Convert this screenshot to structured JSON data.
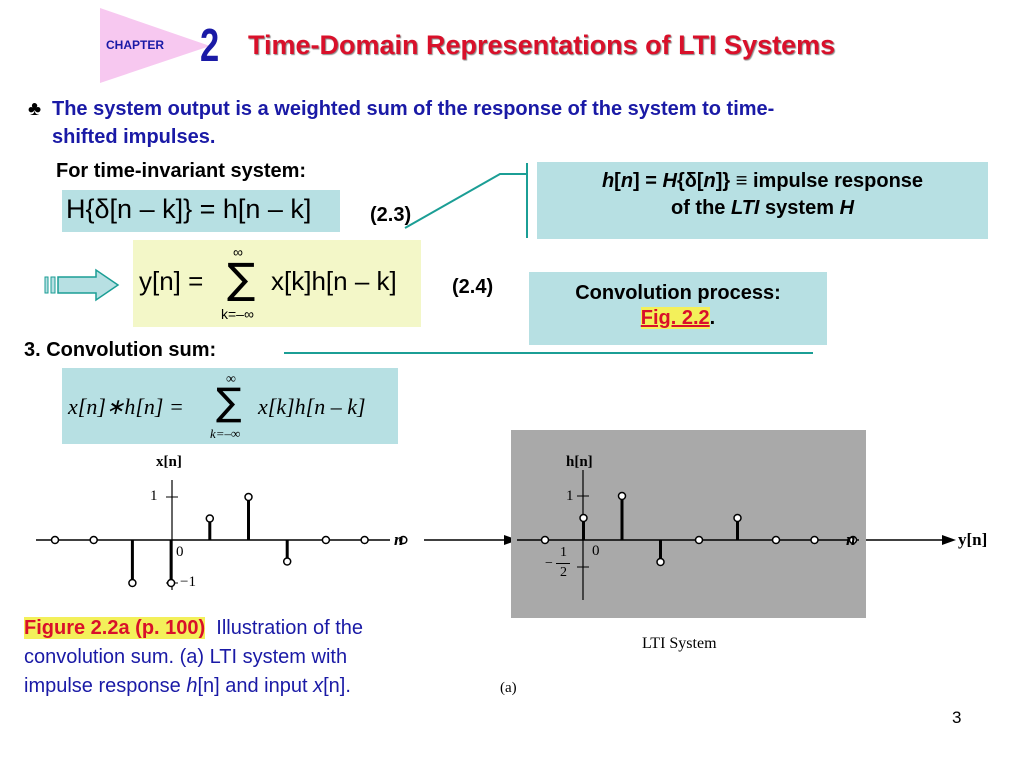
{
  "header": {
    "chapter_label": "CHAPTER",
    "chapter_number": "2",
    "title": "Time-Domain Representations of LTI Systems"
  },
  "bullet": {
    "symbol": "♣",
    "text_line1": "The system output is a weighted sum of the response of the system to time-",
    "text_line2": "shifted impulses."
  },
  "time_invariant": {
    "label": "For time-invariant system:",
    "equation": "H{δ[n – k]} = h[n – k]",
    "eq_number": "(2.3)"
  },
  "definition_box": {
    "line1_h": "h",
    "line1_open": "[",
    "line1_n": "n",
    "line1_close": "] = ",
    "line1_H": "H",
    "line1_rest": "{δ[",
    "line1_n2": "n",
    "line1_end": "]} ≡ impulse response",
    "line2_pre": "of the ",
    "line2_lti": "LTI",
    "line2_mid": " system ",
    "line2_H": "H"
  },
  "sum_equation": {
    "lhs": "y[n] =",
    "sigma": "∑",
    "upper": "∞",
    "lower": "k=–∞",
    "rhs": "x[k]h[n – k]",
    "eq_number": "(2.4)"
  },
  "convolution_box": {
    "line1": "Convolution process:",
    "link": "Fig. 2.2",
    "period": "."
  },
  "convolution_sum": {
    "label": "3. Convolution sum:",
    "lhs": "x[n]∗h[n] =",
    "sigma": "∑",
    "upper": "∞",
    "lower": "k=–∞",
    "rhs": "x[k]h[n – k]"
  },
  "plot_x": {
    "ylabel": "x[n]",
    "tick_1": "1",
    "tick_0": "0",
    "tick_m1": "−1",
    "axis_n": "n",
    "stems": [
      -4,
      -3,
      -2,
      -1,
      0,
      1,
      2,
      3,
      4,
      5,
      6,
      7,
      8
    ],
    "values": [
      0,
      0,
      -1,
      -1,
      0.5,
      1,
      -0.5,
      0,
      0,
      0,
      0,
      0,
      0
    ]
  },
  "plot_h": {
    "ylabel": "h[n]",
    "tick_1": "1",
    "tick_0": "0",
    "tick_half_num": "1",
    "tick_half_den": "2",
    "tick_half_sign": "−",
    "axis_n": "n",
    "system_label": "LTI System",
    "output_label": "y[n]",
    "values": [
      0,
      0.5,
      1,
      -0.5,
      0,
      0.5,
      0,
      0,
      0
    ]
  },
  "caption": {
    "figure_ref": "Figure 2.2a (p. 100)",
    "text1": "Illustration of the",
    "text2": "convolution sum. (a) LTI system with",
    "text3_pre": "impulse response ",
    "text3_h": "h",
    "text3_n": "[n]",
    "text3_mid": " and input ",
    "text3_x": "x",
    "text3_end": "[n].",
    "panel_label": "(a)"
  },
  "page_number": "3",
  "colors": {
    "title_red": "#d9102a",
    "chapter_blue": "#1a1aa6",
    "teal_box": "#b7e0e3",
    "yellow_box": "#f3f7c8",
    "connector_teal": "#1b9e95",
    "link_red": "#d9102a",
    "link_bg": "#f3f05a",
    "plot_gray": "#a9a9a9"
  }
}
